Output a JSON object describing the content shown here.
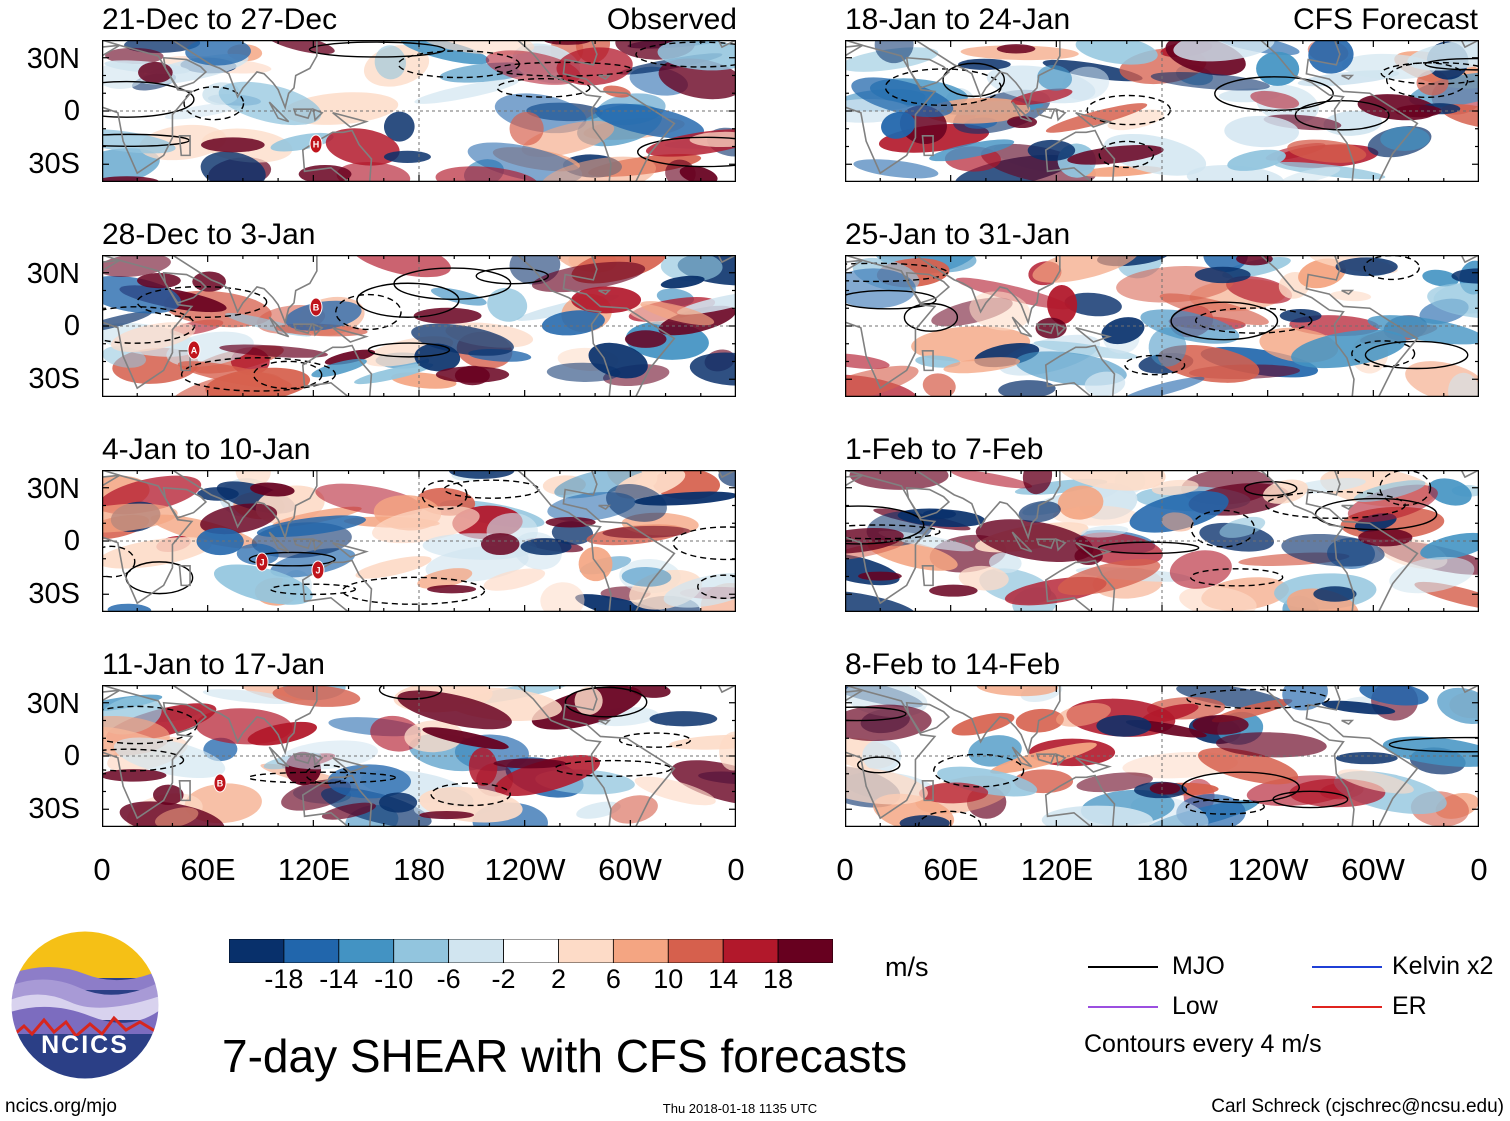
{
  "figure": {
    "title": "7-day SHEAR with CFS forecasts",
    "units": "m/s",
    "site": "ncics.org/mjo",
    "timestamp": "Thu 2018-01-18 1135 UTC",
    "credit": "Carl Schreck (cjschrec@ncsu.edu)",
    "logo_text": "NCICS",
    "col_tags": {
      "left": "Observed",
      "right": "CFS Forecast"
    }
  },
  "lat_labels": [
    "30N",
    "0",
    "30S"
  ],
  "lon_labels": [
    "0",
    "60E",
    "120E",
    "180",
    "120W",
    "60W",
    "0"
  ],
  "panels": [
    {
      "title": "21-Dec to 27-Dec",
      "kind": "observed",
      "seed": 3
    },
    {
      "title": "28-Dec to 3-Jan",
      "kind": "observed",
      "seed": 11
    },
    {
      "title": "4-Jan to 10-Jan",
      "kind": "observed",
      "seed": 19
    },
    {
      "title": "11-Jan to 17-Jan",
      "kind": "observed",
      "seed": 27
    },
    {
      "title": "18-Jan to 24-Jan",
      "kind": "forecast",
      "seed": 35
    },
    {
      "title": "25-Jan to 31-Jan",
      "kind": "forecast",
      "seed": 43
    },
    {
      "title": "1-Feb to 7-Feb",
      "kind": "forecast",
      "seed": 51
    },
    {
      "title": "8-Feb to 14-Feb",
      "kind": "forecast",
      "seed": 59
    }
  ],
  "colorbar": {
    "colors": [
      "#08306b",
      "#2166ac",
      "#4393c3",
      "#92c5de",
      "#d1e5f0",
      "#ffffff",
      "#fddbc7",
      "#f4a582",
      "#d6604d",
      "#b2182b",
      "#67001f"
    ],
    "labels": [
      "-18",
      "-14",
      "-10",
      "-6",
      "-2",
      "2",
      "6",
      "10",
      "14",
      "18"
    ]
  },
  "legend": {
    "items": [
      {
        "label": "MJO",
        "color": "#000000"
      },
      {
        "label": "Kelvin x2",
        "color": "#1f3fd6"
      },
      {
        "label": "Low",
        "color": "#9b4fe0"
      },
      {
        "label": "ER",
        "color": "#e0241f"
      }
    ],
    "note": "Contours every 4 m/s"
  },
  "storm_markers": [
    {
      "panel": 0,
      "label": "H"
    },
    {
      "panel": 1,
      "label": "B"
    },
    {
      "panel": 1,
      "label": "A"
    },
    {
      "panel": 2,
      "label": "J"
    },
    {
      "panel": 2,
      "label": "J"
    },
    {
      "panel": 3,
      "label": "B"
    }
  ]
}
